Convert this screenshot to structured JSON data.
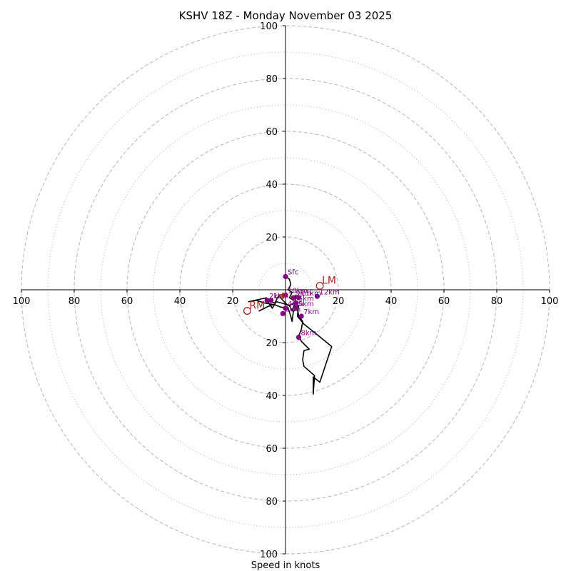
{
  "chart_data": {
    "type": "hodograph",
    "title": "KSHV 18Z - Monday November 03 2025",
    "xlabel": "Speed in knots",
    "units": "knots",
    "range": [
      -100,
      100
    ],
    "axis_ticks": [
      "100",
      "80",
      "60",
      "40",
      "20",
      "20",
      "40",
      "60",
      "80",
      "100"
    ],
    "axis_tick_values": [
      -100,
      -80,
      -60,
      -40,
      -20,
      20,
      40,
      60,
      80,
      100
    ],
    "rings_dashed": [
      20,
      40,
      60,
      80,
      100
    ],
    "rings_dotted": [
      10,
      30,
      50,
      70,
      90
    ],
    "colors": {
      "trace": "#000000",
      "height_marker": "#800080",
      "motion": "#b22222",
      "grid": "#bbbbbb",
      "axis": "#000000"
    },
    "trace": [
      [
        0,
        5
      ],
      [
        1.5,
        4
      ],
      [
        2,
        2
      ],
      [
        1,
        0
      ],
      [
        2.5,
        -1
      ],
      [
        1.5,
        -3
      ],
      [
        3,
        -4
      ],
      [
        4,
        -2
      ],
      [
        3.5,
        -5
      ],
      [
        1,
        -6
      ],
      [
        -1,
        -4
      ],
      [
        -2.5,
        -2
      ],
      [
        -4,
        -5
      ],
      [
        -7,
        -4
      ],
      [
        -5,
        -7
      ],
      [
        -3.5,
        -4.5
      ],
      [
        -1.5,
        -5
      ],
      [
        1.5,
        -6
      ],
      [
        2.5,
        -8
      ],
      [
        3.5,
        -5.5
      ],
      [
        5,
        -6
      ],
      [
        4.5,
        -10
      ],
      [
        7,
        -13
      ],
      [
        12,
        -17
      ],
      [
        17.5,
        -21.5
      ],
      [
        13,
        -35
      ],
      [
        10.5,
        -33
      ],
      [
        10.5,
        -39.5
      ],
      [
        11,
        -32.5
      ],
      [
        7,
        -29
      ],
      [
        6.5,
        -26.5
      ],
      [
        7,
        -23
      ],
      [
        9,
        -22.5
      ],
      [
        6,
        -19.5
      ],
      [
        5,
        -17.5
      ],
      [
        6,
        -15
      ],
      [
        6.5,
        -12
      ],
      [
        5,
        -10
      ],
      [
        4.5,
        -7
      ],
      [
        3,
        -8
      ],
      [
        2.5,
        -12
      ],
      [
        2,
        -10
      ],
      [
        1,
        -7
      ],
      [
        -2,
        -6.5
      ],
      [
        -4.5,
        -5.5
      ],
      [
        -7,
        -6.5
      ],
      [
        -10,
        -8
      ],
      [
        -5,
        -5.5
      ],
      [
        -8,
        -5
      ],
      [
        -11,
        -4
      ],
      [
        -14,
        -4.5
      ],
      [
        -7,
        -3
      ]
    ],
    "height_markers": [
      {
        "label": "Sfc",
        "u": 0,
        "v": 5
      },
      {
        "label": "1km",
        "u": -5.5,
        "v": -4
      },
      {
        "label": "2km",
        "u": -7,
        "v": -4
      },
      {
        "label": "3km",
        "u": -1,
        "v": -9
      },
      {
        "label": "4km",
        "u": 0,
        "v": -7
      },
      {
        "label": "5km",
        "u": 4,
        "v": -7
      },
      {
        "label": "6km",
        "u": 4,
        "v": -5
      },
      {
        "label": "7km",
        "u": 6,
        "v": -10
      },
      {
        "label": "8km",
        "u": 5,
        "v": -18
      },
      {
        "label": "9km",
        "u": 3,
        "v": -3
      },
      {
        "label": "10km",
        "u": 0,
        "v": -2
      },
      {
        "label": "11km",
        "u": 5,
        "v": -3
      },
      {
        "label": "12km",
        "u": 12,
        "v": -2.5
      }
    ],
    "storm_motion": [
      {
        "label": "LM",
        "u": 13,
        "v": 1.5
      },
      {
        "label": "RM",
        "u": -14.5,
        "v": -8
      }
    ],
    "mean_wind": [
      {
        "u": -0.5,
        "v": -2
      },
      {
        "u": -1.5,
        "v": -2.5
      }
    ]
  }
}
